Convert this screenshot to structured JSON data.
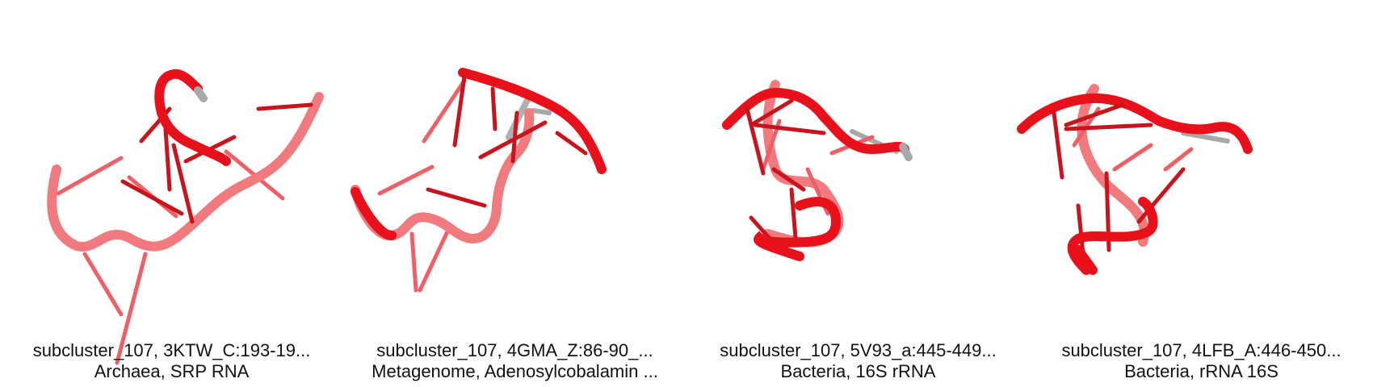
{
  "panels": [
    {
      "title": "subcluster_107, 3KTW_C:193-19...",
      "subtitle": "Archaea, SRP RNA"
    },
    {
      "title": "subcluster_107, 4GMA_Z:86-90_...",
      "subtitle": "Metagenome, Adenosylcobalamin ..."
    },
    {
      "title": "subcluster_107, 5V93_a:445-449...",
      "subtitle": "Bacteria, 16S rRNA"
    },
    {
      "title": "subcluster_107, 4LFB_A:446-450...",
      "subtitle": "Bacteria, rRNA 16S"
    }
  ],
  "colors": {
    "backbone_front": "#e8101a",
    "backbone_back": "#f07a7e",
    "base_dark": "#c8141c",
    "base_light": "#ee5b61",
    "inactive_grey": "#a8a8a8"
  }
}
